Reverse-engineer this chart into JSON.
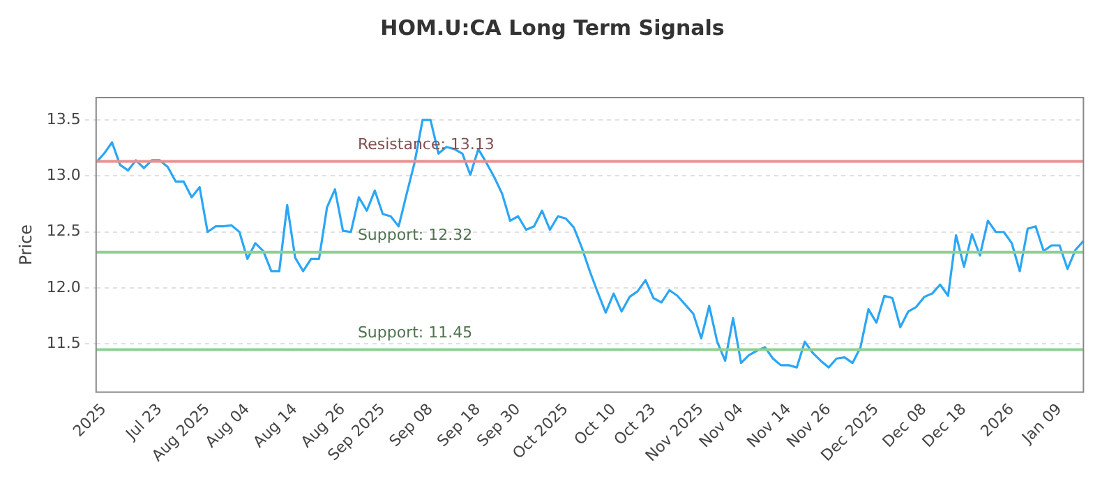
{
  "chart_data": {
    "type": "line",
    "title": "HOM.U:CA Long Term Signals",
    "ylabel": "Price",
    "categories": [
      null,
      "2025",
      null,
      null,
      null,
      null,
      null,
      null,
      "Jul 23",
      null,
      null,
      null,
      null,
      null,
      "Aug 2025",
      null,
      null,
      null,
      null,
      "Aug 04",
      null,
      null,
      null,
      null,
      null,
      "Aug 14",
      null,
      null,
      null,
      null,
      null,
      "Aug 26",
      null,
      null,
      null,
      null,
      "Sep 2025",
      null,
      null,
      null,
      null,
      null,
      "Sep 08",
      null,
      null,
      null,
      null,
      null,
      "Sep 18",
      null,
      null,
      null,
      null,
      "Sep 30",
      null,
      null,
      null,
      null,
      null,
      "Oct 2025",
      null,
      null,
      null,
      null,
      null,
      "Oct 10",
      null,
      null,
      null,
      null,
      "Oct 23",
      null,
      null,
      null,
      null,
      null,
      "Nov 2025",
      null,
      null,
      null,
      null,
      "Nov 04",
      null,
      null,
      null,
      null,
      null,
      "Nov 14",
      null,
      null,
      null,
      null,
      "Nov 26",
      null,
      null,
      null,
      null,
      null,
      "Dec 2025",
      null,
      null,
      null,
      null,
      null,
      "Dec 08",
      null,
      null,
      null,
      null,
      "Dec 18",
      null,
      null,
      null,
      null,
      null,
      "2026",
      null,
      null,
      null,
      null,
      null,
      "Jan 09",
      null,
      null,
      null
    ],
    "series": [
      {
        "color": "#2ba6f5",
        "values": [
          13.12,
          13.2,
          13.3,
          13.1,
          13.05,
          13.14,
          13.07,
          13.14,
          13.14,
          13.08,
          12.95,
          12.95,
          12.81,
          12.9,
          12.5,
          12.55,
          12.55,
          12.56,
          12.5,
          12.26,
          12.4,
          12.33,
          12.15,
          12.15,
          12.74,
          12.27,
          12.15,
          12.26,
          12.26,
          12.72,
          12.88,
          12.51,
          12.5,
          12.81,
          12.69,
          12.87,
          12.66,
          12.64,
          12.55,
          12.84,
          13.12,
          13.5,
          13.5,
          13.2,
          13.26,
          13.24,
          13.2,
          13.01,
          13.24,
          13.12,
          12.99,
          12.84,
          12.6,
          12.64,
          12.52,
          12.55,
          12.69,
          12.52,
          12.64,
          12.62,
          12.54,
          12.36,
          12.15,
          11.96,
          11.78,
          11.95,
          11.79,
          11.92,
          11.97,
          12.07,
          11.91,
          11.87,
          11.98,
          11.93,
          11.85,
          11.77,
          11.55,
          11.84,
          11.52,
          11.35,
          11.73,
          11.33,
          11.4,
          11.44,
          11.47,
          11.37,
          11.31,
          11.31,
          11.29,
          11.52,
          11.42,
          11.35,
          11.29,
          11.37,
          11.38,
          11.33,
          11.47,
          11.81,
          11.69,
          11.93,
          11.91,
          11.65,
          11.79,
          11.83,
          11.92,
          11.95,
          12.03,
          11.93,
          12.47,
          12.19,
          12.48,
          12.29,
          12.6,
          12.5,
          12.5,
          12.4,
          12.15,
          12.53,
          12.55,
          12.33,
          12.38,
          12.38,
          12.17,
          12.34,
          12.42
        ]
      }
    ],
    "ylim": [
      11.07,
      13.7
    ],
    "yticks": [
      11.5,
      {
        "value": 12,
        "label": "12.0"
      },
      12.5,
      {
        "value": 13,
        "label": "13.0"
      },
      13.5
    ],
    "grid": "y",
    "legend": false,
    "marker": "none",
    "line_style": "solid",
    "ref_lines": [
      {
        "axis": "y",
        "value": 13.13,
        "label": "Resistance: 13.13",
        "color": "#e8918f"
      },
      {
        "axis": "y",
        "value": 12.32,
        "label": "Support: 12.32",
        "color": "#8fd08f"
      },
      {
        "axis": "y",
        "value": 11.45,
        "label": "Support: 11.45",
        "color": "#8fd08f"
      }
    ]
  }
}
